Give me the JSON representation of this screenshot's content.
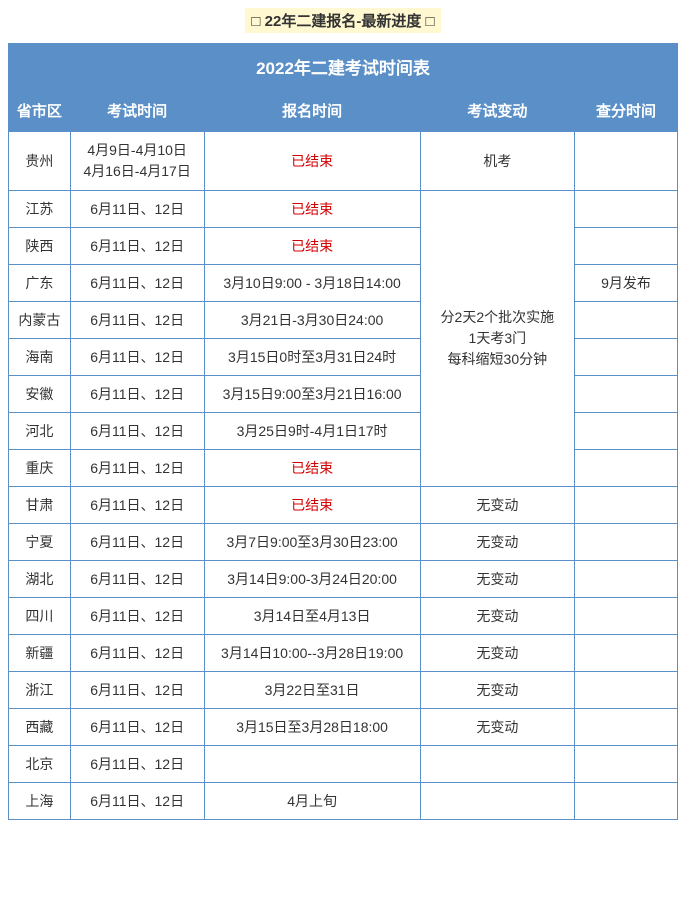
{
  "page_title": "□ 22年二建报名-最新进度 □",
  "table_banner": "2022年二建考试时间表",
  "columns": [
    "省市区",
    "考试时间",
    "报名时间",
    "考试变动",
    "查分时间"
  ],
  "merged_change_text": "分2天2个批次实施\n1天考3门\n每科缩短30分钟",
  "rows": [
    {
      "province": "贵州",
      "exam_time": "4月9日-4月10日\n4月16日-4月17日",
      "reg_time": "已结束",
      "reg_ended": true,
      "change": "机考",
      "score_time": "",
      "exam_multiline": true
    },
    {
      "province": "江苏",
      "exam_time": "6月11日、12日",
      "reg_time": "已结束",
      "reg_ended": true,
      "change_merged_start": true,
      "score_time": ""
    },
    {
      "province": "陕西",
      "exam_time": "6月11日、12日",
      "reg_time": "已结束",
      "reg_ended": true,
      "score_time": ""
    },
    {
      "province": "广东",
      "exam_time": "6月11日、12日",
      "reg_time": "3月10日9:00 - 3月18日14:00",
      "reg_ended": false,
      "score_time": "9月发布"
    },
    {
      "province": "内蒙古",
      "exam_time": "6月11日、12日",
      "reg_time": "3月21日-3月30日24:00",
      "reg_ended": false,
      "score_time": ""
    },
    {
      "province": "海南",
      "exam_time": "6月11日、12日",
      "reg_time": "3月15日0时至3月31日24时",
      "reg_ended": false,
      "score_time": ""
    },
    {
      "province": "安徽",
      "exam_time": "6月11日、12日",
      "reg_time": "3月15日9:00至3月21日16:00",
      "reg_ended": false,
      "score_time": ""
    },
    {
      "province": "河北",
      "exam_time": "6月11日、12日",
      "reg_time": "3月25日9时-4月1日17时",
      "reg_ended": false,
      "score_time": ""
    },
    {
      "province": "重庆",
      "exam_time": "6月11日、12日",
      "reg_time": "已结束",
      "reg_ended": true,
      "score_time": ""
    },
    {
      "province": "甘肃",
      "exam_time": "6月11日、12日",
      "reg_time": "已结束",
      "reg_ended": true,
      "change": "无变动",
      "score_time": ""
    },
    {
      "province": "宁夏",
      "exam_time": "6月11日、12日",
      "reg_time": "3月7日9:00至3月30日23:00",
      "reg_ended": false,
      "change": "无变动",
      "score_time": ""
    },
    {
      "province": "湖北",
      "exam_time": "6月11日、12日",
      "reg_time": "3月14日9:00-3月24日20:00",
      "reg_ended": false,
      "change": "无变动",
      "score_time": ""
    },
    {
      "province": "四川",
      "exam_time": "6月11日、12日",
      "reg_time": "3月14日至4月13日",
      "reg_ended": false,
      "change": "无变动",
      "score_time": ""
    },
    {
      "province": "新疆",
      "exam_time": "6月11日、12日",
      "reg_time": "3月14日10:00--3月28日19:00",
      "reg_ended": false,
      "change": "无变动",
      "score_time": ""
    },
    {
      "province": "浙江",
      "exam_time": "6月11日、12日",
      "reg_time": "3月22日至31日",
      "reg_ended": false,
      "change": "无变动",
      "score_time": ""
    },
    {
      "province": "西藏",
      "exam_time": "6月11日、12日",
      "reg_time": "3月15日至3月28日18:00",
      "reg_ended": false,
      "change": "无变动",
      "score_time": ""
    },
    {
      "province": "北京",
      "exam_time": "6月11日、12日",
      "reg_time": "",
      "reg_ended": false,
      "change": "",
      "score_time": ""
    },
    {
      "province": "上海",
      "exam_time": "6月11日、12日",
      "reg_time": "4月上旬",
      "reg_ended": false,
      "change": "",
      "score_time": ""
    }
  ],
  "merged_rowspan": 8,
  "colors": {
    "header_bg": "#5a8fc7",
    "header_text": "#ffffff",
    "border": "#5a8fc7",
    "ended_text": "#d40000",
    "title_bg": "#fff8d0",
    "body_text": "#333333"
  }
}
